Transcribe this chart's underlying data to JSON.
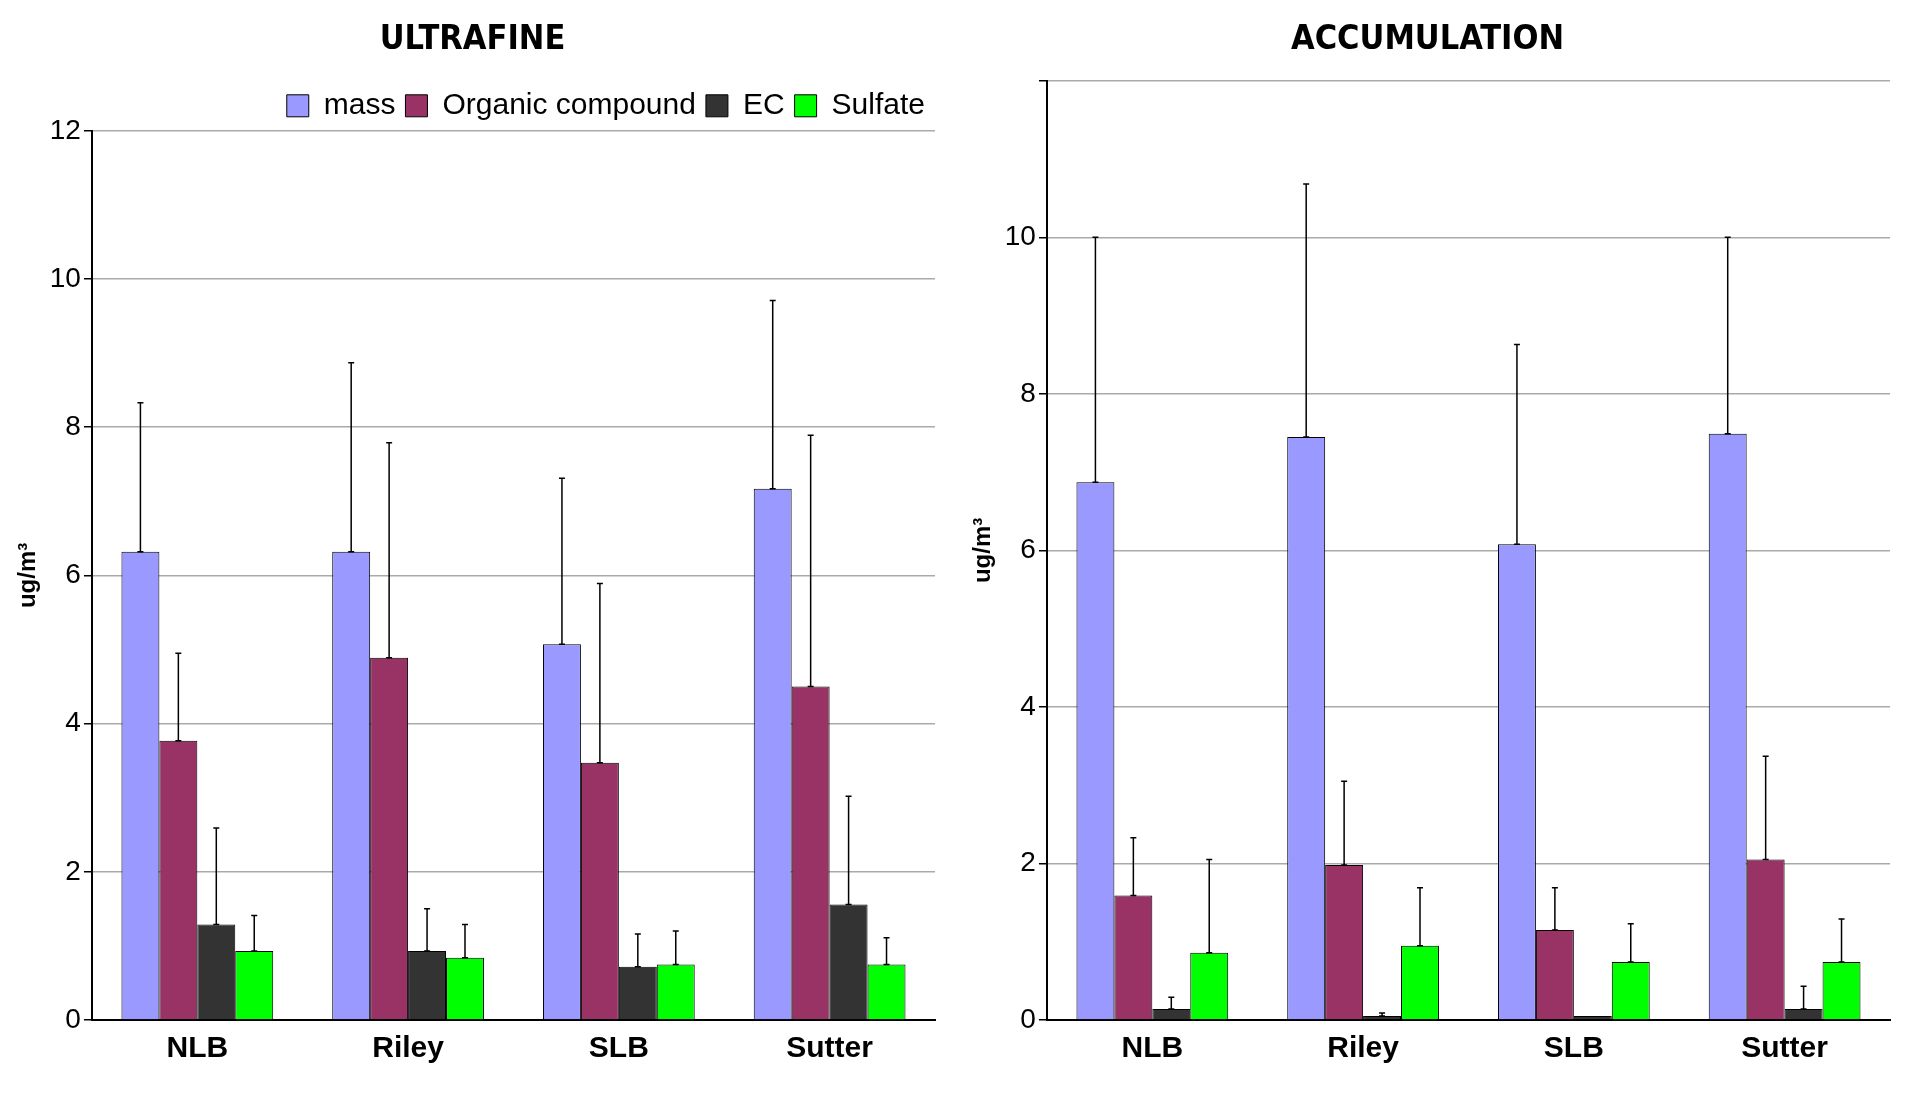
{
  "chart_data": [
    {
      "type": "bar",
      "title": "ULTRAFINE",
      "ylabel": "ug/m³",
      "categories": [
        "NLB",
        "Riley",
        "SLB",
        "Sutter"
      ],
      "ylim": [
        0,
        12
      ],
      "yticks": [
        0,
        2,
        4,
        6,
        8,
        10,
        12
      ],
      "grid": "y",
      "legend": "top right",
      "series": [
        {
          "name": "mass",
          "color": "#9999ff",
          "values": [
            6.32,
            6.32,
            5.07,
            7.17
          ],
          "errors": [
            [
              6.32,
              8.33
            ],
            [
              6.32,
              8.87
            ],
            [
              5.07,
              7.31
            ],
            [
              7.17,
              9.71
            ]
          ]
        },
        {
          "name": "Organic compound",
          "color": "#993366",
          "values": [
            3.77,
            4.89,
            3.47,
            4.5
          ],
          "errors": [
            [
              3.77,
              4.95
            ],
            [
              4.89,
              7.79
            ],
            [
              3.47,
              5.89
            ],
            [
              4.5,
              7.89
            ]
          ]
        },
        {
          "name": "EC",
          "color": "#333333",
          "values": [
            1.29,
            0.93,
            0.72,
            1.56
          ],
          "errors": [
            [
              1.29,
              2.59
            ],
            [
              0.93,
              1.5
            ],
            [
              0.72,
              1.16
            ],
            [
              1.56,
              3.02
            ]
          ]
        },
        {
          "name": "Sulfate",
          "color": "#00ff00",
          "values": [
            0.93,
            0.84,
            0.75,
            0.75
          ],
          "errors": [
            [
              0.93,
              1.41
            ],
            [
              0.84,
              1.29
            ],
            [
              0.75,
              1.2
            ],
            [
              0.75,
              1.11
            ]
          ]
        }
      ]
    },
    {
      "type": "bar",
      "title": "ACCUMULATION",
      "ylabel": "ug/m³",
      "categories": [
        "NLB",
        "Riley",
        "SLB",
        "Sutter"
      ],
      "ylim": [
        0,
        12
      ],
      "yticks": [
        0,
        2,
        4,
        6,
        8,
        10,
        {
          "value": 12,
          "label": null
        }
      ],
      "grid": "y",
      "series": [
        {
          "color": "#9999ff",
          "values": [
            6.87,
            7.45,
            6.08,
            7.49
          ],
          "errors": [
            [
              6.87,
              10
            ],
            [
              7.45,
              10.68
            ],
            [
              6.08,
              8.63
            ],
            [
              7.49,
              10
            ]
          ]
        },
        {
          "color": "#993366",
          "values": [
            1.59,
            1.98,
            1.15,
            2.05
          ],
          "errors": [
            [
              1.59,
              2.33
            ],
            [
              1.98,
              3.05
            ],
            [
              1.15,
              1.69
            ],
            [
              2.05,
              3.37
            ]
          ]
        },
        {
          "color": "#333333",
          "values": [
            0.14,
            0.05,
            0.05,
            0.14
          ],
          "errors": [
            [
              0.14,
              0.29
            ],
            [
              0.05,
              0.09
            ],
            null,
            [
              0.14,
              0.43
            ]
          ]
        },
        {
          "color": "#00ff00",
          "values": [
            0.86,
            0.95,
            0.74,
            0.74
          ],
          "errors": [
            [
              0.86,
              2.05
            ],
            [
              0.95,
              1.69
            ],
            [
              0.74,
              1.23
            ],
            [
              0.74,
              1.29
            ]
          ]
        }
      ]
    }
  ]
}
